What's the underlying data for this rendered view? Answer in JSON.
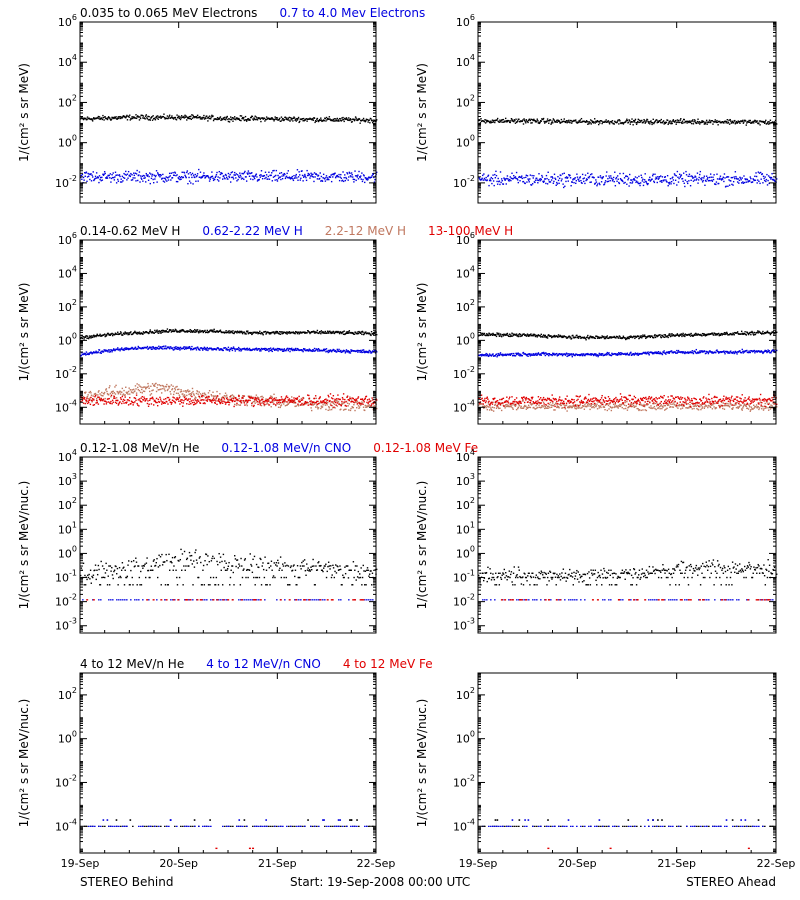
{
  "colors": {
    "black": "#000000",
    "blue": "#0000e0",
    "tan": "#c07860",
    "red": "#e00000"
  },
  "footer": {
    "left": "STEREO Behind",
    "center": "Start: 19-Sep-2008 00:00 UTC",
    "right": "STEREO Ahead"
  },
  "chart_data": [
    {
      "row": 0,
      "side": "behind",
      "type": "scatter",
      "ylabel": "1/(cm² s sr MeV)",
      "log_y": true,
      "ylim": [
        0.001,
        1000000
      ],
      "yticks": [
        {
          "v": 0.01,
          "e": "-2"
        },
        {
          "v": 1,
          "e": "0"
        },
        {
          "v": 100,
          "e": "2"
        },
        {
          "v": 10000,
          "e": "4"
        },
        {
          "v": 1000000,
          "e": "6"
        }
      ],
      "xlim_days": [
        0,
        3
      ],
      "xtick_labels": [
        "19-Sep",
        "20-Sep",
        "21-Sep",
        "22-Sep"
      ],
      "show_xlabels": false,
      "legend": [
        {
          "text": "0.035 to 0.065 MeV Electrons",
          "color": "black"
        },
        {
          "text": "0.7 to 4.0 Mev Electrons",
          "color": "blue"
        }
      ],
      "series": [
        {
          "name": "0.035 to 0.065 MeV Electrons",
          "color": "black",
          "style": "dense",
          "x": [
            0,
            0.5,
            1,
            1.5,
            2,
            2.5,
            3
          ],
          "y": [
            15,
            18,
            18,
            16,
            15,
            14,
            13
          ],
          "spread_dex": 0.06
        },
        {
          "name": "0.7 to 4.0 Mev Electrons",
          "color": "blue",
          "style": "dense",
          "x": [
            0,
            0.5,
            1,
            1.5,
            2,
            2.5,
            3
          ],
          "y": [
            0.02,
            0.02,
            0.02,
            0.02,
            0.02,
            0.02,
            0.02
          ],
          "spread_dex": 0.14
        }
      ]
    },
    {
      "row": 0,
      "side": "ahead",
      "type": "scatter",
      "ylabel": "1/(cm² s sr MeV)",
      "log_y": true,
      "ylim": [
        0.001,
        1000000
      ],
      "yticks": [
        {
          "v": 0.01,
          "e": "-2"
        },
        {
          "v": 1,
          "e": "0"
        },
        {
          "v": 100,
          "e": "2"
        },
        {
          "v": 10000,
          "e": "4"
        },
        {
          "v": 1000000,
          "e": "6"
        }
      ],
      "xlim_days": [
        0,
        3
      ],
      "xtick_labels": [
        "19-Sep",
        "20-Sep",
        "21-Sep",
        "22-Sep"
      ],
      "show_xlabels": false,
      "legend": [],
      "series": [
        {
          "name": "0.035 to 0.065 MeV Electrons",
          "color": "black",
          "style": "dense",
          "x": [
            0,
            0.5,
            1,
            1.5,
            2,
            2.5,
            3
          ],
          "y": [
            12,
            12,
            11,
            11,
            11,
            11,
            10
          ],
          "spread_dex": 0.06
        },
        {
          "name": "0.7 to 4.0 Mev Electrons",
          "color": "blue",
          "style": "dense",
          "x": [
            0,
            0.5,
            1,
            1.5,
            2,
            2.5,
            3
          ],
          "y": [
            0.015,
            0.015,
            0.015,
            0.015,
            0.015,
            0.015,
            0.015
          ],
          "spread_dex": 0.16
        }
      ]
    },
    {
      "row": 1,
      "side": "behind",
      "type": "scatter",
      "ylabel": "1/(cm² s sr MeV)",
      "log_y": true,
      "ylim": [
        1e-05,
        1000000
      ],
      "yticks": [
        {
          "v": 0.0001,
          "e": "-4"
        },
        {
          "v": 0.01,
          "e": "-2"
        },
        {
          "v": 1,
          "e": "0"
        },
        {
          "v": 100,
          "e": "2"
        },
        {
          "v": 10000,
          "e": "4"
        },
        {
          "v": 1000000,
          "e": "6"
        }
      ],
      "xlim_days": [
        0,
        3
      ],
      "xtick_labels": [
        "19-Sep",
        "20-Sep",
        "21-Sep",
        "22-Sep"
      ],
      "show_xlabels": false,
      "legend": [
        {
          "text": "0.14-0.62 MeV H",
          "color": "black"
        },
        {
          "text": "0.62-2.22 MeV H",
          "color": "blue"
        },
        {
          "text": "2.2-12 MeV H",
          "color": "tan"
        },
        {
          "text": "13-100 MeV H",
          "color": "red"
        }
      ],
      "series": [
        {
          "name": "0.14-0.62 MeV H",
          "color": "black",
          "style": "dense",
          "x": [
            0,
            0.3,
            0.6,
            1,
            1.3,
            1.6,
            2,
            2.5,
            3
          ],
          "y": [
            1.5,
            2.2,
            3,
            3.8,
            3.5,
            3,
            2.8,
            3,
            2.5
          ],
          "spread_dex": 0.05
        },
        {
          "name": "0.62-2.22 MeV H",
          "color": "blue",
          "style": "dense",
          "x": [
            0,
            0.3,
            0.6,
            1,
            1.5,
            2,
            2.5,
            3
          ],
          "y": [
            0.15,
            0.25,
            0.35,
            0.35,
            0.3,
            0.28,
            0.25,
            0.2
          ],
          "spread_dex": 0.05
        },
        {
          "name": "2.2-12 MeV H",
          "color": "tan",
          "style": "dense",
          "x": [
            0,
            0.3,
            0.6,
            0.8,
            1,
            1.3,
            1.6,
            2,
            2.5,
            3
          ],
          "y": [
            0.0004,
            0.0007,
            0.0012,
            0.0015,
            0.0009,
            0.0005,
            0.0003,
            0.0002,
            0.00015,
            0.00012
          ],
          "spread_dex": 0.18
        },
        {
          "name": "13-100 MeV H",
          "color": "red",
          "style": "dense",
          "x": [
            0,
            0.5,
            1,
            1.5,
            2,
            2.5,
            3
          ],
          "y": [
            0.00025,
            0.00025,
            0.00025,
            0.00025,
            0.00025,
            0.00025,
            0.00025
          ],
          "spread_dex": 0.15
        }
      ]
    },
    {
      "row": 1,
      "side": "ahead",
      "type": "scatter",
      "ylabel": "1/(cm² s sr MeV)",
      "log_y": true,
      "ylim": [
        1e-05,
        1000000
      ],
      "yticks": [
        {
          "v": 0.0001,
          "e": "-4"
        },
        {
          "v": 0.01,
          "e": "-2"
        },
        {
          "v": 1,
          "e": "0"
        },
        {
          "v": 100,
          "e": "2"
        },
        {
          "v": 10000,
          "e": "4"
        },
        {
          "v": 1000000,
          "e": "6"
        }
      ],
      "xlim_days": [
        0,
        3
      ],
      "xtick_labels": [
        "19-Sep",
        "20-Sep",
        "21-Sep",
        "22-Sep"
      ],
      "show_xlabels": false,
      "legend": [],
      "series": [
        {
          "name": "0.14-0.62 MeV H",
          "color": "black",
          "style": "dense",
          "x": [
            0,
            0.5,
            1,
            1.5,
            2,
            2.5,
            3
          ],
          "y": [
            2.2,
            2,
            1.5,
            1.5,
            2,
            2.5,
            2.8
          ],
          "spread_dex": 0.05
        },
        {
          "name": "0.62-2.22 MeV H",
          "color": "blue",
          "style": "dense",
          "x": [
            0,
            0.5,
            1,
            1.5,
            2,
            2.5,
            3
          ],
          "y": [
            0.13,
            0.15,
            0.14,
            0.15,
            0.2,
            0.2,
            0.22
          ],
          "spread_dex": 0.05
        },
        {
          "name": "2.2-12 MeV H",
          "color": "tan",
          "style": "dense",
          "x": [
            0,
            0.5,
            1,
            1.5,
            2,
            2.5,
            3
          ],
          "y": [
            0.00012,
            0.00012,
            0.00012,
            0.00012,
            0.00012,
            0.00012,
            0.00012
          ],
          "spread_dex": 0.12
        },
        {
          "name": "13-100 MeV H",
          "color": "red",
          "style": "dense",
          "x": [
            0,
            0.5,
            1,
            1.5,
            2,
            2.5,
            3
          ],
          "y": [
            0.00025,
            0.00025,
            0.00025,
            0.00025,
            0.00025,
            0.00025,
            0.00025
          ],
          "spread_dex": 0.15
        }
      ]
    },
    {
      "row": 2,
      "side": "behind",
      "type": "scatter",
      "ylabel": "1/(cm² s sr MeV/nuc.)",
      "log_y": true,
      "ylim": [
        0.0005,
        10000
      ],
      "yticks": [
        {
          "v": 0.001,
          "e": "-3"
        },
        {
          "v": 0.01,
          "e": "-2"
        },
        {
          "v": 0.1,
          "e": "-1"
        },
        {
          "v": 1,
          "e": "0"
        },
        {
          "v": 10,
          "e": "1"
        },
        {
          "v": 100,
          "e": "2"
        },
        {
          "v": 1000,
          "e": "3"
        },
        {
          "v": 10000,
          "e": "4"
        }
      ],
      "xlim_days": [
        0,
        3
      ],
      "xtick_labels": [
        "19-Sep",
        "20-Sep",
        "21-Sep",
        "22-Sep"
      ],
      "show_xlabels": false,
      "legend": [
        {
          "text": "0.12-1.08 MeV/n He",
          "color": "black"
        },
        {
          "text": "0.12-1.08 MeV/n CNO",
          "color": "blue"
        },
        {
          "text": "0.12-1.08 MeV Fe",
          "color": "red"
        }
      ],
      "series": [
        {
          "name": "0.12-1.08 MeV/n He",
          "color": "black",
          "style": "quantized",
          "levels": [
            0.05,
            0.1,
            0.2,
            0.3
          ],
          "x": [
            0,
            0.5,
            0.8,
            1,
            1.2,
            1.5,
            2,
            2.5,
            3
          ],
          "y": [
            0.15,
            0.25,
            0.5,
            0.8,
            0.6,
            0.4,
            0.3,
            0.25,
            0.2
          ],
          "spread_dex": 0.2
        },
        {
          "name": "0.12-1.08 MeV/n CNO",
          "color": "blue",
          "style": "floor",
          "x": [
            0,
            3
          ],
          "y": [
            0.012,
            0.012
          ],
          "spread_dex": 0.02
        },
        {
          "name": "0.12-1.08 MeV Fe",
          "color": "red",
          "style": "sparse",
          "x": [
            0,
            3
          ],
          "y": [
            0.012,
            0.012
          ],
          "spread_dex": 0.02
        }
      ]
    },
    {
      "row": 2,
      "side": "ahead",
      "type": "scatter",
      "ylabel": "1/(cm² s sr MeV/nuc.)",
      "log_y": true,
      "ylim": [
        0.0005,
        10000
      ],
      "yticks": [
        {
          "v": 0.001,
          "e": "-3"
        },
        {
          "v": 0.01,
          "e": "-2"
        },
        {
          "v": 0.1,
          "e": "-1"
        },
        {
          "v": 1,
          "e": "0"
        },
        {
          "v": 10,
          "e": "1"
        },
        {
          "v": 100,
          "e": "2"
        },
        {
          "v": 1000,
          "e": "3"
        },
        {
          "v": 10000,
          "e": "4"
        }
      ],
      "xlim_days": [
        0,
        3
      ],
      "xtick_labels": [
        "19-Sep",
        "20-Sep",
        "21-Sep",
        "22-Sep"
      ],
      "show_xlabels": false,
      "legend": [],
      "series": [
        {
          "name": "0.12-1.08 MeV/n He",
          "color": "black",
          "style": "quantized",
          "levels": [
            0.05,
            0.1,
            0.15,
            0.2
          ],
          "x": [
            0,
            0.5,
            1,
            1.5,
            2,
            2.5,
            3
          ],
          "y": [
            0.12,
            0.12,
            0.12,
            0.15,
            0.25,
            0.3,
            0.25
          ],
          "spread_dex": 0.15
        },
        {
          "name": "0.12-1.08 MeV/n CNO",
          "color": "blue",
          "style": "floor",
          "x": [
            0,
            3
          ],
          "y": [
            0.012,
            0.012
          ],
          "spread_dex": 0.02
        },
        {
          "name": "0.12-1.08 MeV Fe",
          "color": "red",
          "style": "sparse",
          "x": [
            0,
            3
          ],
          "y": [
            0.012,
            0.012
          ],
          "spread_dex": 0.02
        }
      ]
    },
    {
      "row": 3,
      "side": "behind",
      "type": "scatter",
      "ylabel": "1/(cm² s sr MeV/nuc.)",
      "log_y": true,
      "ylim": [
        6e-06,
        1000
      ],
      "yticks": [
        {
          "v": 0.0001,
          "e": "-4"
        },
        {
          "v": 0.01,
          "e": "-2"
        },
        {
          "v": 1,
          "e": "0"
        },
        {
          "v": 100,
          "e": "2"
        }
      ],
      "xlim_days": [
        0,
        3
      ],
      "xtick_labels": [
        "19-Sep",
        "20-Sep",
        "21-Sep",
        "22-Sep"
      ],
      "show_xlabels": true,
      "legend": [
        {
          "text": "4 to 12 MeV/n He",
          "color": "black"
        },
        {
          "text": "4 to 12 MeV/n CNO",
          "color": "blue"
        },
        {
          "text": "4 to 12 MeV Fe",
          "color": "red"
        }
      ],
      "series": [
        {
          "name": "4 to 12 MeV/n He",
          "color": "black",
          "style": "floor",
          "x": [
            0,
            3
          ],
          "y": [
            0.0001,
            0.0001
          ],
          "spread_dex": 0.0
        },
        {
          "name": "4 to 12 MeV/n CNO",
          "color": "blue",
          "style": "floor",
          "x": [
            0,
            3
          ],
          "y": [
            0.0001,
            0.0001
          ],
          "spread_dex": 0.0
        },
        {
          "name": "4 to 12 MeV Fe",
          "color": "red",
          "style": "sparse",
          "x": [
            0,
            3
          ],
          "y": [
            0.0001,
            0.0001
          ],
          "spread_dex": 0.0
        }
      ]
    },
    {
      "row": 3,
      "side": "ahead",
      "type": "scatter",
      "ylabel": "1/(cm² s sr MeV/nuc.)",
      "log_y": true,
      "ylim": [
        6e-06,
        1000
      ],
      "yticks": [
        {
          "v": 0.0001,
          "e": "-4"
        },
        {
          "v": 0.01,
          "e": "-2"
        },
        {
          "v": 1,
          "e": "0"
        },
        {
          "v": 100,
          "e": "2"
        }
      ],
      "xlim_days": [
        0,
        3
      ],
      "xtick_labels": [
        "19-Sep",
        "20-Sep",
        "21-Sep",
        "22-Sep"
      ],
      "show_xlabels": true,
      "legend": [],
      "series": [
        {
          "name": "4 to 12 MeV/n He",
          "color": "black",
          "style": "floor",
          "x": [
            0,
            3
          ],
          "y": [
            0.0001,
            0.0001
          ],
          "spread_dex": 0.0
        },
        {
          "name": "4 to 12 MeV/n CNO",
          "color": "blue",
          "style": "floor",
          "x": [
            0,
            3
          ],
          "y": [
            0.0001,
            0.0001
          ],
          "spread_dex": 0.0
        },
        {
          "name": "4 to 12 MeV Fe",
          "color": "red",
          "style": "sparse",
          "x": [
            0,
            3
          ],
          "y": [
            0.0001,
            0.0001
          ],
          "spread_dex": 0.0
        }
      ]
    }
  ]
}
